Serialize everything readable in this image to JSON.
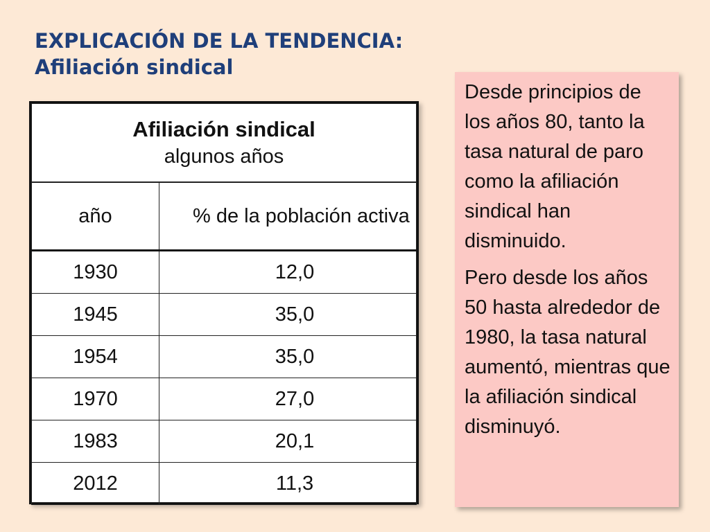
{
  "slide": {
    "title_line1": "EXPLICACIÓN DE LA TENDENCIA:",
    "title_line2": "Afiliación sindical"
  },
  "table": {
    "caption": "Afiliación sindical",
    "subcaption": "algunos años",
    "headers": [
      "año",
      "% de la población activa"
    ],
    "rows": [
      {
        "year": "1930",
        "value": "12,0"
      },
      {
        "year": "1945",
        "value": "35,0"
      },
      {
        "year": "1954",
        "value": "35,0"
      },
      {
        "year": "1970",
        "value": "27,0"
      },
      {
        "year": "1983",
        "value": "20,1"
      },
      {
        "year": "2012",
        "value": "11,3"
      }
    ]
  },
  "note": {
    "paragraph1": "Desde principios de los años 80, tanto la tasa natural de paro como la afiliación sindical han disminuido.",
    "paragraph2": "Pero desde los años 50 hasta alrededor de 1980, la tasa natural aumentó, mientras que la afiliación sindical disminuyó."
  }
}
